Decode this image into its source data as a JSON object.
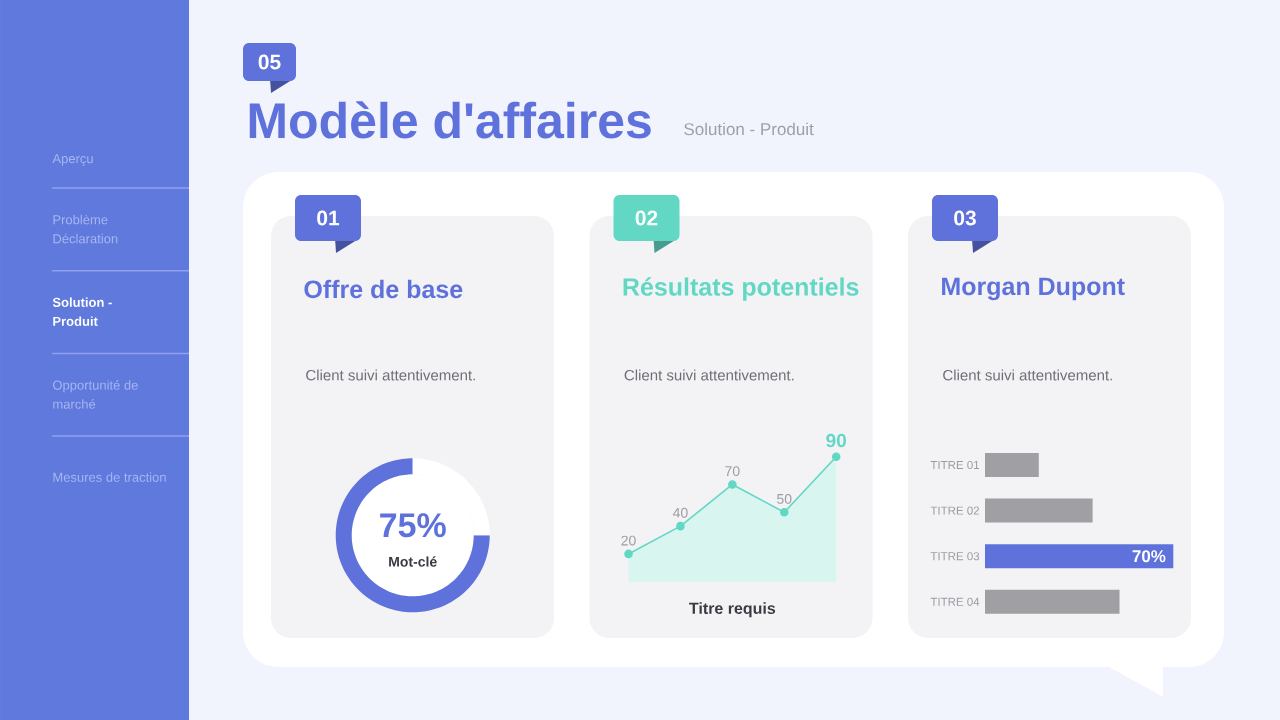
{
  "chart_data": [
    {
      "type": "other",
      "title": "Modèle d'affaires",
      "subtitle": "Solution - Produit",
      "annotations": [
        "05",
        "Aperçu",
        "Problème Déclaration",
        "Solution - Produit",
        "Opportunité de marché",
        "Mesures de traction"
      ]
    },
    {
      "type": "donut",
      "title": "Offre de base",
      "annotations": [
        "01",
        "Client suivi attentivement."
      ],
      "categories": [
        "Mot-clé",
        null
      ],
      "values": [
        75,
        25
      ],
      "colors": [
        "#5F72DC",
        "#FFFFFF"
      ],
      "value_labels": [
        "75%",
        null
      ]
    },
    {
      "type": "area",
      "title": "Résultats potentiels",
      "annotations": [
        "02",
        "Client suivi attentivement."
      ],
      "xlabel": "Titre requis",
      "categories": [
        null,
        null,
        null,
        null,
        null
      ],
      "values": [
        20,
        40,
        70,
        50,
        90
      ],
      "color": "#62D8C4",
      "data_labels": true,
      "marker": "circle",
      "tick_labels": false
    },
    {
      "type": "bar",
      "orientation": "horizontal",
      "title": "Morgan Dupont",
      "annotations": [
        "03",
        "Client suivi attentivement."
      ],
      "categories": [
        "TITRE 01",
        "TITRE 02",
        "TITRE 03",
        "TITRE 04"
      ],
      "values": [
        20,
        40,
        70,
        50
      ],
      "colors": [
        "#A09FA4",
        "#A09FA4",
        "#5F72DC",
        "#A09FA4"
      ],
      "value_labels": [
        null,
        null,
        "70%",
        null
      ],
      "xlim": [
        0,
        70
      ],
      "tick_labels": "y"
    }
  ]
}
